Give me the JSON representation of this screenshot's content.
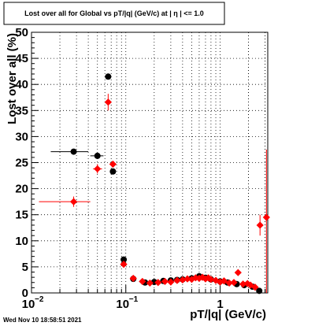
{
  "chart_data": {
    "type": "scatter",
    "title": "Lost over all for Global vs pT/|q| (GeV/c) at |  η | <= 1.0",
    "xlabel": "pT/|q| (GeV/c)",
    "ylabel": "Lost over all (%)",
    "x_scale": "log",
    "xlim": [
      0.01,
      3.2
    ],
    "ylim": [
      0,
      50
    ],
    "x_tick_labels": [
      "10",
      "10",
      "1"
    ],
    "x_tick_exponents": [
      "−2",
      "−1",
      ""
    ],
    "y_ticks": [
      0,
      5,
      10,
      15,
      20,
      25,
      30,
      35,
      40,
      45,
      50
    ],
    "grid": true,
    "legend": "none",
    "series": [
      {
        "color": "#000000",
        "marker": "circle",
        "points": [
          {
            "x": 0.028,
            "y": 27.1,
            "xlo": 0.016,
            "xhi": 0.04
          },
          {
            "x": 0.05,
            "y": 26.3,
            "xlo": 0.042,
            "xhi": 0.058
          },
          {
            "x": 0.065,
            "y": 41.5
          },
          {
            "x": 0.073,
            "y": 23.3
          },
          {
            "x": 0.095,
            "y": 6.4
          },
          {
            "x": 0.12,
            "y": 2.7
          },
          {
            "x": 0.16,
            "y": 2.0
          },
          {
            "x": 0.2,
            "y": 2.1
          },
          {
            "x": 0.25,
            "y": 2.3
          },
          {
            "x": 0.3,
            "y": 2.4
          },
          {
            "x": 0.35,
            "y": 2.5
          },
          {
            "x": 0.4,
            "y": 2.6
          },
          {
            "x": 0.5,
            "y": 2.8
          },
          {
            "x": 0.6,
            "y": 3.2
          },
          {
            "x": 0.7,
            "y": 2.9
          },
          {
            "x": 0.8,
            "y": 2.6
          },
          {
            "x": 1.0,
            "y": 2.2
          },
          {
            "x": 1.2,
            "y": 2.0
          },
          {
            "x": 1.5,
            "y": 1.7
          },
          {
            "x": 1.8,
            "y": 1.5
          },
          {
            "x": 2.2,
            "y": 1.2
          },
          {
            "x": 2.6,
            "y": 0.4
          }
        ]
      },
      {
        "color": "#ff0000",
        "marker": "diamond",
        "points": [
          {
            "x": 0.028,
            "y": 17.5,
            "xlo": 0.012,
            "xhi": 0.042,
            "err": 1.0
          },
          {
            "x": 0.05,
            "y": 23.8,
            "xlo": 0.045,
            "xhi": 0.056,
            "err": 0.9
          },
          {
            "x": 0.065,
            "y": 36.6,
            "err": 1.6
          },
          {
            "x": 0.073,
            "y": 24.7
          },
          {
            "x": 0.095,
            "y": 5.5
          },
          {
            "x": 0.12,
            "y": 2.8
          },
          {
            "x": 0.15,
            "y": 2.2
          },
          {
            "x": 0.18,
            "y": 1.9
          },
          {
            "x": 0.22,
            "y": 2.0
          },
          {
            "x": 0.26,
            "y": 2.2
          },
          {
            "x": 0.3,
            "y": 2.1
          },
          {
            "x": 0.35,
            "y": 2.4
          },
          {
            "x": 0.4,
            "y": 2.5
          },
          {
            "x": 0.45,
            "y": 2.7
          },
          {
            "x": 0.5,
            "y": 2.6
          },
          {
            "x": 0.55,
            "y": 2.9
          },
          {
            "x": 0.6,
            "y": 2.8
          },
          {
            "x": 0.65,
            "y": 3.0
          },
          {
            "x": 0.7,
            "y": 2.7
          },
          {
            "x": 0.75,
            "y": 2.9
          },
          {
            "x": 0.8,
            "y": 2.6
          },
          {
            "x": 0.9,
            "y": 2.4
          },
          {
            "x": 1.0,
            "y": 2.1
          },
          {
            "x": 1.1,
            "y": 2.3
          },
          {
            "x": 1.25,
            "y": 1.9
          },
          {
            "x": 1.4,
            "y": 2.0
          },
          {
            "x": 1.55,
            "y": 3.9
          },
          {
            "x": 1.75,
            "y": 1.7
          },
          {
            "x": 1.95,
            "y": 1.8
          },
          {
            "x": 2.1,
            "y": 1.5
          },
          {
            "x": 2.35,
            "y": 1.1
          },
          {
            "x": 2.65,
            "y": 13.0,
            "err": 2.0
          },
          {
            "x": 3.1,
            "y": 14.5,
            "elo": 14.5,
            "ehi": 13.0
          }
        ]
      }
    ]
  },
  "footer": {
    "timestamp": "Wed Nov 10 18:58:51 2021"
  }
}
